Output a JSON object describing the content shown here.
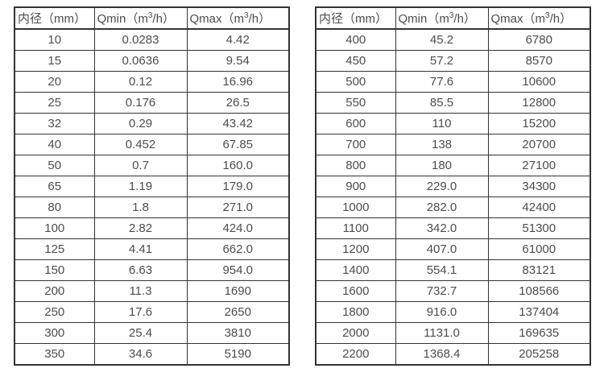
{
  "page": {
    "background": "#ffffff",
    "text_color": "#4d4d4d",
    "border_color": "#333333"
  },
  "chart_data": [
    {
      "type": "table",
      "title": "",
      "columns": [
        "内径（mm）",
        "Qmin（m³/h）",
        "Qmax（m³/h）"
      ],
      "rows": [
        [
          "10",
          "0.0283",
          "4.42"
        ],
        [
          "15",
          "0.0636",
          "9.54"
        ],
        [
          "20",
          "0.12",
          "16.96"
        ],
        [
          "25",
          "0.176",
          "26.5"
        ],
        [
          "32",
          "0.29",
          "43.42"
        ],
        [
          "40",
          "0.452",
          "67.85"
        ],
        [
          "50",
          "0.7",
          "160.0"
        ],
        [
          "65",
          "1.19",
          "179.0"
        ],
        [
          "80",
          "1.8",
          "271.0"
        ],
        [
          "100",
          "2.82",
          "424.0"
        ],
        [
          "125",
          "4.41",
          "662.0"
        ],
        [
          "150",
          "6.63",
          "954.0"
        ],
        [
          "200",
          "11.3",
          "1690"
        ],
        [
          "250",
          "17.6",
          "2650"
        ],
        [
          "300",
          "25.4",
          "3810"
        ],
        [
          "350",
          "34.6",
          "5190"
        ]
      ]
    },
    {
      "type": "table",
      "title": "",
      "columns": [
        "内径（mm）",
        "Qmin（m³/h）",
        "Qmax（m³/h）"
      ],
      "rows": [
        [
          "400",
          "45.2",
          "6780"
        ],
        [
          "450",
          "57.2",
          "8570"
        ],
        [
          "500",
          "77.6",
          "10600"
        ],
        [
          "550",
          "85.5",
          "12800"
        ],
        [
          "600",
          "110",
          "15200"
        ],
        [
          "700",
          "138",
          "20700"
        ],
        [
          "800",
          "180",
          "27100"
        ],
        [
          "900",
          "229.0",
          "34300"
        ],
        [
          "1000",
          "282.0",
          "42400"
        ],
        [
          "1100",
          "342.0",
          "51300"
        ],
        [
          "1200",
          "407.0",
          "61000"
        ],
        [
          "1400",
          "554.1",
          "83121"
        ],
        [
          "1600",
          "732.7",
          "108566"
        ],
        [
          "1800",
          "916.0",
          "137404"
        ],
        [
          "2000",
          "1131.0",
          "169635"
        ],
        [
          "2200",
          "1368.4",
          "205258"
        ]
      ]
    }
  ]
}
